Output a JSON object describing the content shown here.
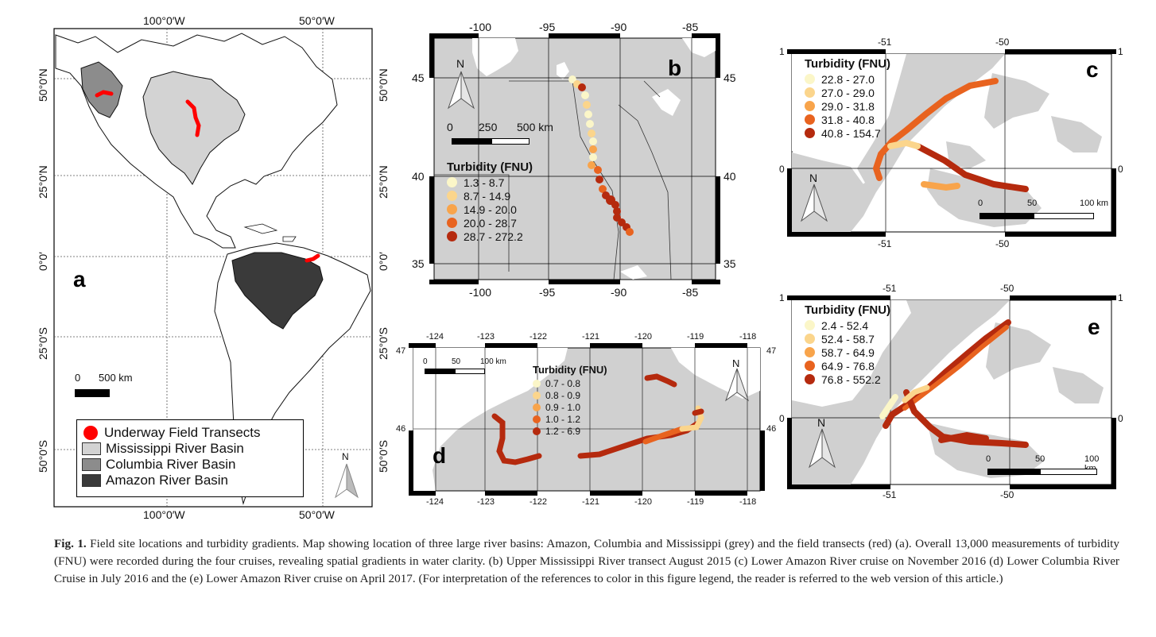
{
  "panel_a": {
    "letter": "a",
    "top_ticks": [
      "100°0′W",
      "50°0′W"
    ],
    "bottom_ticks": [
      "100°0′W",
      "50°0′W"
    ],
    "left_ticks": [
      "50°0′N",
      "25°0′N",
      "0°0′",
      "25°0′S",
      "50°0′S"
    ],
    "right_ticks": [
      "50°0′N",
      "25°0′N",
      "0°0′",
      "25°0′S",
      "50°0′S"
    ],
    "scalebar": {
      "start": "0",
      "end": "500 km"
    },
    "north": "N",
    "legend": [
      {
        "label": "Underway Field Transects",
        "color": "#ff0000",
        "kind": "dot"
      },
      {
        "label": "Mississippi River Basin",
        "color": "#d3d3d3",
        "kind": "swatch"
      },
      {
        "label": "Columbia River Basin",
        "color": "#8c8c8c",
        "kind": "swatch"
      },
      {
        "label": "Amazon River Basin",
        "color": "#3a3a3a",
        "kind": "swatch"
      }
    ]
  },
  "panel_b": {
    "letter": "b",
    "top_ticks": [
      "-100",
      "-95",
      "-90",
      "-85"
    ],
    "bottom_ticks": [
      "-100",
      "-95",
      "-90",
      "-85"
    ],
    "left_ticks": [
      "45",
      "40",
      "35"
    ],
    "right_ticks": [
      "45",
      "40",
      "35"
    ],
    "north": "N",
    "scalebar": {
      "start": "0",
      "mid": "250",
      "end": "500 km"
    },
    "legend_title": "Turbidity (FNU)",
    "legend": [
      {
        "range": "1.3 - 8.7",
        "color": "#fbf6c8"
      },
      {
        "range": "8.7 - 14.9",
        "color": "#fbd58c"
      },
      {
        "range": "14.9 - 20.0",
        "color": "#f8a44b"
      },
      {
        "range": "20.0 - 28.7",
        "color": "#e8631f"
      },
      {
        "range": "28.7 - 272.2",
        "color": "#b52a0e"
      }
    ]
  },
  "panel_c": {
    "letter": "c",
    "top_ticks": [
      "-51",
      "-50"
    ],
    "bottom_ticks": [
      "-51",
      "-50"
    ],
    "left_ticks": [
      "1",
      "0"
    ],
    "right_ticks": [
      "1",
      "0"
    ],
    "north": "N",
    "scalebar": {
      "start": "0",
      "mid": "50",
      "end": "100 km"
    },
    "legend_title": "Turbidity (FNU)",
    "legend": [
      {
        "range": "22.8 - 27.0",
        "color": "#fbf6c8"
      },
      {
        "range": "27.0 - 29.0",
        "color": "#fbd58c"
      },
      {
        "range": "29.0 - 31.8",
        "color": "#f8a44b"
      },
      {
        "range": "31.8 - 40.8",
        "color": "#e8631f"
      },
      {
        "range": "40.8 - 154.7",
        "color": "#b52a0e"
      }
    ]
  },
  "panel_d": {
    "letter": "d",
    "top_ticks": [
      "-124",
      "-123",
      "-122",
      "-121",
      "-120",
      "-119",
      "-118"
    ],
    "bottom_ticks": [
      "-124",
      "-123",
      "-122",
      "-121",
      "-120",
      "-119",
      "-118"
    ],
    "left_ticks": [
      "47",
      "46"
    ],
    "right_ticks": [
      "47",
      "46"
    ],
    "north": "N",
    "scalebar": {
      "start": "0",
      "mid": "50",
      "end": "100 km"
    },
    "legend_title": "Turbidity (FNU)",
    "legend": [
      {
        "range": "0.7 - 0.8",
        "color": "#fbf6c8"
      },
      {
        "range": "0.8 - 0.9",
        "color": "#fbd58c"
      },
      {
        "range": "0.9 - 1.0",
        "color": "#f8a44b"
      },
      {
        "range": "1.0 - 1.2",
        "color": "#e8631f"
      },
      {
        "range": "1.2 - 6.9",
        "color": "#b52a0e"
      }
    ]
  },
  "panel_e": {
    "letter": "e",
    "top_ticks": [
      "-51",
      "-50"
    ],
    "bottom_ticks": [
      "-51",
      "-50"
    ],
    "left_ticks": [
      "1",
      "0"
    ],
    "right_ticks": [
      "1",
      "0"
    ],
    "north": "N",
    "scalebar": {
      "start": "0",
      "mid": "50",
      "end": "100 km"
    },
    "legend_title": "Turbidity (FNU)",
    "legend": [
      {
        "range": "2.4 - 52.4",
        "color": "#fbf6c8"
      },
      {
        "range": "52.4 - 58.7",
        "color": "#fbd58c"
      },
      {
        "range": "58.7 - 64.9",
        "color": "#f8a44b"
      },
      {
        "range": "64.9 - 76.8",
        "color": "#e8631f"
      },
      {
        "range": "76.8 - 552.2",
        "color": "#b52a0e"
      }
    ]
  },
  "caption": {
    "label": "Fig. 1.",
    "text": "Field site locations and turbidity gradients. Map showing location of three large river basins: Amazon, Columbia and Mississippi (grey) and the field transects (red) (a). Overall 13,000 measurements of turbidity (FNU) were recorded during the four cruises, revealing spatial gradients in water clarity. (b) Upper Mississippi River transect August 2015 (c) Lower Amazon River cruise on November 2016 (d) Lower Columbia River Cruise in July 2016 and the (e) Lower Amazon River cruise on April 2017. (For interpretation of the references to color in this figure legend, the reader is referred to the web version of this article.)"
  },
  "colors": {
    "land": "#d0d0d0",
    "water": "#ffffff",
    "frame": "#000000"
  }
}
